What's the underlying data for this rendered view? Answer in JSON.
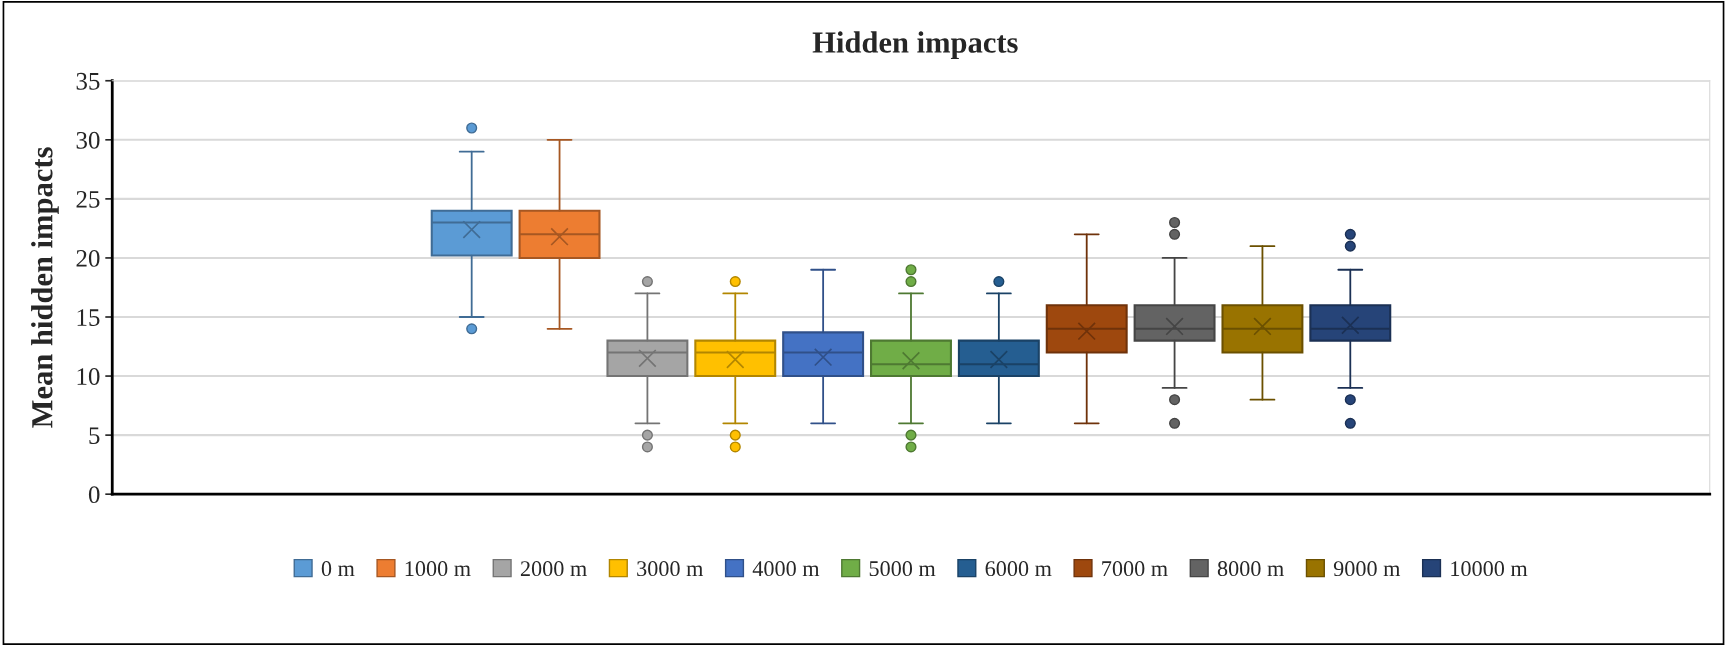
{
  "chart_data": {
    "type": "box",
    "title": "Hidden impacts",
    "ylabel": "Mean hidden impacts",
    "categories": [
      null
    ],
    "ylim": [
      0,
      35
    ],
    "yticks": [
      0,
      5,
      10,
      15,
      20,
      25,
      30,
      35
    ],
    "grid": "y",
    "legend": "bottom",
    "marker": "circle",
    "series": [
      {
        "name": "0 m",
        "color": "#5b9bd5",
        "boxes": [
          {
            "low": 15,
            "q1": 20.2,
            "median": 23,
            "q3": 24,
            "high": 29,
            "mean": 22.4,
            "outliers": [
              31,
              14
            ]
          }
        ]
      },
      {
        "name": "1000 m",
        "color": "#ed7d31",
        "boxes": [
          {
            "low": 14,
            "q1": 20,
            "median": 22,
            "q3": 24,
            "high": 30,
            "mean": 21.8
          }
        ]
      },
      {
        "name": "2000 m",
        "color": "#a5a5a5",
        "boxes": [
          {
            "low": 6,
            "q1": 10,
            "median": 12,
            "q3": 13,
            "high": 17,
            "mean": 11.5,
            "outliers": [
              18,
              5,
              4
            ]
          }
        ]
      },
      {
        "name": "3000 m",
        "color": "#ffc000",
        "boxes": [
          {
            "low": 6,
            "q1": 10,
            "median": 12,
            "q3": 13,
            "high": 17,
            "mean": 11.4,
            "outliers": [
              18,
              5,
              4
            ]
          }
        ]
      },
      {
        "name": "4000 m",
        "color": "#4472c4",
        "boxes": [
          {
            "low": 6,
            "q1": 10,
            "median": 12,
            "q3": 13.7,
            "high": 19,
            "mean": 11.6
          }
        ]
      },
      {
        "name": "5000 m",
        "color": "#70ad47",
        "boxes": [
          {
            "low": 6,
            "q1": 10,
            "median": 11,
            "q3": 13,
            "high": 17,
            "mean": 11.3,
            "outliers": [
              19,
              18,
              5,
              4
            ]
          }
        ]
      },
      {
        "name": "6000 m",
        "color": "#255e91",
        "boxes": [
          {
            "low": 6,
            "q1": 10,
            "median": 11,
            "q3": 13,
            "high": 17,
            "mean": 11.4,
            "outliers": [
              18
            ]
          }
        ]
      },
      {
        "name": "7000 m",
        "color": "#9e480e",
        "boxes": [
          {
            "low": 6,
            "q1": 12,
            "median": 14,
            "q3": 16,
            "high": 22,
            "mean": 13.8
          }
        ]
      },
      {
        "name": "8000 m",
        "color": "#636363",
        "boxes": [
          {
            "low": 9,
            "q1": 13,
            "median": 14,
            "q3": 16,
            "high": 20,
            "mean": 14.2,
            "outliers": [
              23,
              22,
              8,
              6
            ]
          }
        ]
      },
      {
        "name": "9000 m",
        "color": "#997300",
        "boxes": [
          {
            "low": 8,
            "q1": 12,
            "median": 14,
            "q3": 16,
            "high": 21,
            "mean": 14.2
          }
        ]
      },
      {
        "name": "10000 m",
        "color": "#264478",
        "boxes": [
          {
            "low": 9,
            "q1": 13,
            "median": 14,
            "q3": 16,
            "high": 19,
            "mean": 14.3,
            "outliers": [
              22,
              21,
              8,
              6
            ]
          }
        ]
      }
    ]
  }
}
